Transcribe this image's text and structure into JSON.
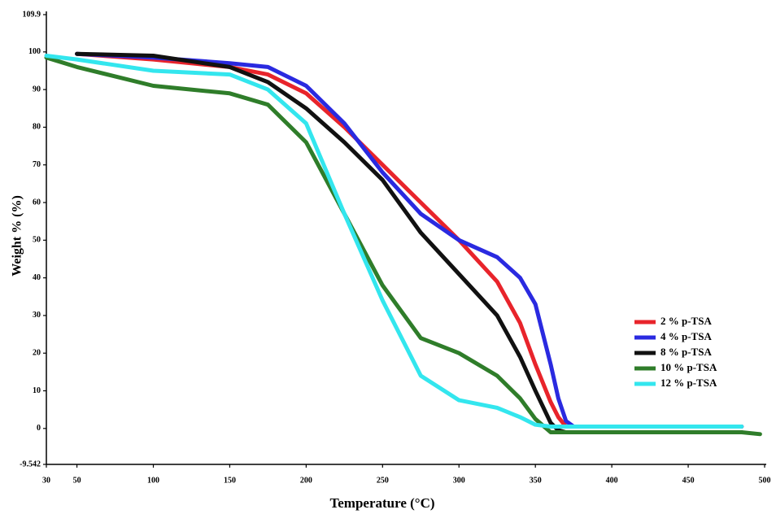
{
  "chart_data": {
    "type": "line",
    "x_label": "Temperature (°C)",
    "y_label": "Weight % (%)",
    "x": [
      30,
      50,
      100,
      150,
      175,
      200,
      225,
      250,
      275,
      300,
      325,
      340,
      350,
      360,
      365,
      370,
      375,
      400,
      450,
      485,
      497
    ],
    "series": [
      {
        "name": "2 % p-TSA",
        "color": "#e8242b",
        "values": [
          null,
          99.5,
          98,
          96,
          94,
          89,
          80,
          70,
          60,
          50,
          39,
          28,
          17,
          7,
          3,
          0.5,
          0.5,
          0.5,
          0.5,
          0.5,
          null
        ]
      },
      {
        "name": "4 % p-TSA",
        "color": "#2a2ae0",
        "values": [
          null,
          99.5,
          98.5,
          97,
          96,
          91,
          81,
          68,
          57,
          50,
          45.5,
          40,
          33,
          17,
          8,
          2,
          0.5,
          0.5,
          0.5,
          0.5,
          null
        ]
      },
      {
        "name": "8 % p-TSA",
        "color": "#111111",
        "values": [
          null,
          99.5,
          99,
          96,
          92,
          85,
          76,
          66,
          52,
          41,
          30,
          19,
          10,
          1.5,
          -0.5,
          -1,
          -1,
          -1,
          -1,
          -1,
          null
        ]
      },
      {
        "name": "10 % p-TSA",
        "color": "#2f7d2a",
        "values": [
          98.5,
          96,
          91,
          89,
          86,
          76,
          57,
          38,
          24,
          20,
          14,
          8,
          2.5,
          -1,
          -1,
          -1,
          -1,
          -1,
          -1,
          -1,
          -1.5
        ]
      },
      {
        "name": "12 % p-TSA",
        "color": "#33e6ee",
        "values": [
          99,
          98,
          95,
          94,
          90,
          81,
          57,
          34,
          14,
          7.5,
          5.5,
          3,
          1,
          0.5,
          0.5,
          0.5,
          0.5,
          0.5,
          0.5,
          0.5,
          null
        ]
      }
    ],
    "xlim": [
      30,
      500
    ],
    "xticks": [
      30,
      50,
      100,
      150,
      200,
      250,
      300,
      350,
      400,
      450,
      500
    ],
    "ylim": [
      -9.542,
      109.9
    ],
    "yticks": [
      -9.542,
      0,
      10,
      20,
      30,
      40,
      50,
      60,
      70,
      80,
      90,
      100,
      109.9
    ],
    "legend": "right",
    "grid": false
  }
}
